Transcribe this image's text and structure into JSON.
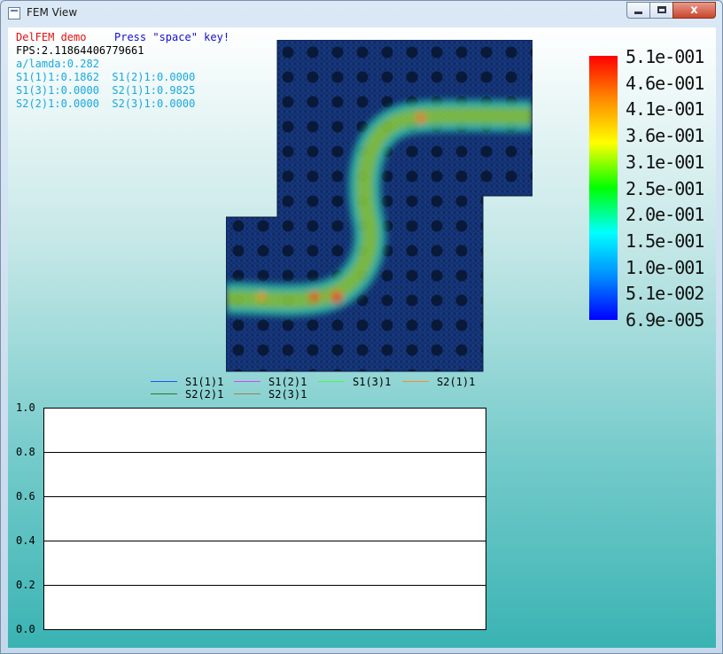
{
  "window": {
    "title": "FEM View",
    "close_glyph": "x",
    "icons": {
      "app": "window-icon",
      "minimize": "minimize-icon",
      "maximize": "maximize-icon",
      "close": "close-icon"
    }
  },
  "overlay": {
    "demo_label": "DelFEM demo",
    "instruction": "Press \"space\" key!",
    "fps": "FPS:2.11864406779661",
    "alambda": "a/lamda:0.282",
    "s_params": [
      "S1(1)1:0.1862  S1(2)1:0.0000",
      "S1(3)1:0.0000  S2(1)1:0.9825",
      "S2(2)1:0.0000  S2(3)1:0.0000"
    ],
    "colors": {
      "demo": "#e01010",
      "instruction": "#1010d0",
      "fps": "#000000",
      "params": "#18a8e0"
    }
  },
  "colorbar": {
    "labels": [
      "5.1e-001",
      "4.6e-001",
      "4.1e-001",
      "3.6e-001",
      "3.1e-001",
      "2.5e-001",
      "2.0e-001",
      "1.5e-001",
      "1.0e-001",
      "5.1e-002",
      "6.9e-005"
    ],
    "max": 0.51,
    "min": 6.9e-05
  },
  "legend": [
    {
      "label": "S1(1)1",
      "color": "#2050ff"
    },
    {
      "label": "S1(2)1",
      "color": "#e040ff"
    },
    {
      "label": "S1(3)1",
      "color": "#40ff40"
    },
    {
      "label": "S2(1)1",
      "color": "#ff8c20"
    },
    {
      "label": "S2(2)1",
      "color": "#208020"
    },
    {
      "label": "S2(3)1",
      "color": "#a08040"
    }
  ],
  "plot": {
    "yticks": [
      "1.0",
      "0.8",
      "0.6",
      "0.4",
      "0.2",
      "0.0"
    ],
    "ylim": [
      0,
      1
    ]
  },
  "chart_data": {
    "type": "line",
    "series": [
      {
        "name": "S1(1)1",
        "values": []
      },
      {
        "name": "S1(2)1",
        "values": []
      },
      {
        "name": "S1(3)1",
        "values": []
      },
      {
        "name": "S2(1)1",
        "values": []
      },
      {
        "name": "S2(2)1",
        "values": []
      },
      {
        "name": "S2(3)1",
        "values": []
      }
    ],
    "ylim": [
      0,
      1
    ],
    "grid": true
  }
}
